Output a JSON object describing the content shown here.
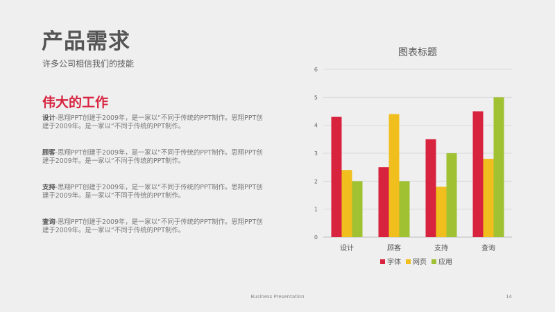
{
  "slide": {
    "title": "产品需求",
    "subtitle": "许多公司相信我们的技能",
    "section_title": "伟大的工作",
    "items": [
      {
        "term": "设计",
        "text": "-思翔PPT创建于2009年，是一家以“不同于传统的PPT制作。思翔PPT创建于2009年。是一家以“不同于传统的PPT制作。"
      },
      {
        "term": "顾客",
        "text": "-思翔PPT创建于2009年，是一家以“不同于传统的PPT制作。思翔PPT创建于2009年。是一家以“不同于传统的PPT制作。"
      },
      {
        "term": "支持",
        "text": "-思翔PPT创建于2009年，是一家以“不同于传统的PPT制作。思翔PPT创建于2009年。是一家以“不同于传统的PPT制作。"
      },
      {
        "term": "查询",
        "text": "-思翔PPT创建于2009年，是一家以“不同于传统的PPT制作。思翔PPT创建于2009年。是一家以“不同于传统的PPT制作。"
      }
    ]
  },
  "footer": {
    "center_text": "Business Presentation",
    "page_number": "14"
  },
  "chart_data": {
    "type": "bar",
    "title": "图表标题",
    "categories": [
      "设计",
      "顾客",
      "支持",
      "查询"
    ],
    "series": [
      {
        "name": "字体",
        "color": "#d8233f",
        "values": [
          4.3,
          2.5,
          3.5,
          4.5
        ]
      },
      {
        "name": "网页",
        "color": "#f0bf1e",
        "values": [
          2.4,
          4.4,
          1.8,
          2.8
        ]
      },
      {
        "name": "应用",
        "color": "#9fc132",
        "values": [
          2.0,
          2.0,
          3.0,
          5.0
        ]
      }
    ],
    "ylim": [
      0,
      6
    ],
    "yticks": [
      0,
      1,
      2,
      3,
      4,
      5,
      6
    ],
    "grid": true,
    "legend_position": "bottom",
    "xlabel": "",
    "ylabel": ""
  }
}
